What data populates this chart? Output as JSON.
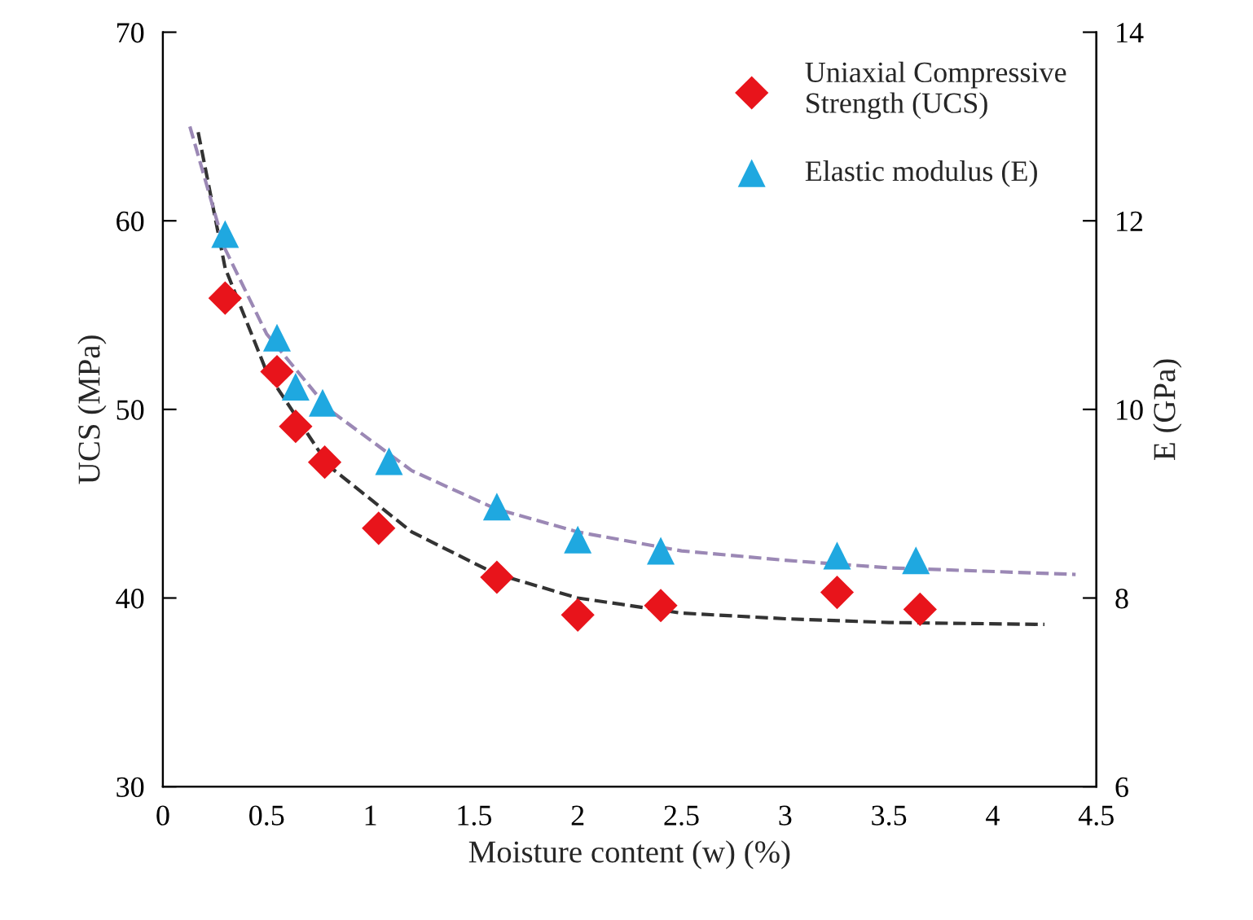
{
  "chart_data": {
    "type": "scatter",
    "xlabel": "Moisture content (w) (%)",
    "ylabel": "UCS (MPa)",
    "y2label": "E (GPa)",
    "xlim": [
      0,
      4.5
    ],
    "xticks": [
      0,
      0.5,
      1,
      1.5,
      2,
      2.5,
      3,
      3.5,
      4,
      4.5
    ],
    "ylim": [
      30,
      70
    ],
    "yticks": [
      30,
      40,
      50,
      60,
      70
    ],
    "y2lim": [
      6,
      14
    ],
    "y2ticks": [
      6,
      8,
      10,
      12,
      14
    ],
    "grid": false,
    "legend": "top right",
    "series": [
      {
        "name": "Uniaxial Compressive\nStrength (UCS)",
        "marker": "diamond",
        "color": "#e8141b",
        "x": [
          0.3,
          0.55,
          0.64,
          0.78,
          1.04,
          1.61,
          2.0,
          2.4,
          3.25,
          3.65
        ],
        "values": [
          55.9,
          52.0,
          49.1,
          47.2,
          43.7,
          41.1,
          39.1,
          39.6,
          40.3,
          39.4
        ]
      },
      {
        "name": "Elastic modulus (E)",
        "marker": "triangle",
        "axis": "y2",
        "color": "#1fa8e0",
        "x": [
          0.3,
          0.55,
          0.64,
          0.77,
          1.09,
          1.61,
          2.0,
          2.4,
          3.25,
          3.63
        ],
        "values": [
          11.86,
          10.76,
          10.24,
          10.07,
          9.45,
          8.97,
          8.62,
          8.5,
          8.45,
          8.4
        ]
      },
      {
        "type": "line",
        "line_style": "dashed",
        "color": "#333333",
        "x": [
          0.17,
          0.3,
          0.5,
          0.8,
          1.2,
          1.6,
          2.0,
          2.5,
          3.0,
          3.5,
          4.25
        ],
        "values": [
          64.7,
          57.5,
          52.0,
          47.0,
          43.5,
          41.3,
          40.0,
          39.2,
          38.9,
          38.7,
          38.6
        ]
      },
      {
        "type": "line",
        "line_style": "dashed",
        "axis": "y2",
        "color": "#9b88b5",
        "x": [
          0.13,
          0.3,
          0.5,
          0.8,
          1.2,
          1.6,
          2.0,
          2.5,
          3.0,
          3.5,
          4.4
        ],
        "values": [
          13.0,
          11.7,
          10.8,
          10.0,
          9.35,
          8.95,
          8.7,
          8.5,
          8.4,
          8.32,
          8.25
        ]
      }
    ]
  }
}
